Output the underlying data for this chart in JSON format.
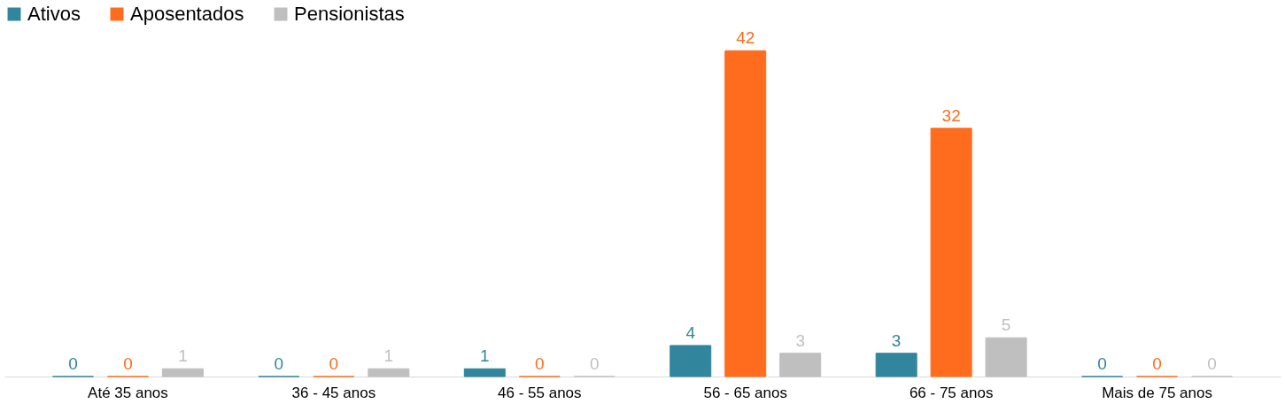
{
  "chart_data": {
    "type": "bar",
    "categories": [
      "Até 35 anos",
      "36 - 45 anos",
      "46 - 55 anos",
      "56 - 65 anos",
      "66 - 75 anos",
      "Mais de 75 anos"
    ],
    "series": [
      {
        "name": "Ativos",
        "color": "#31859c",
        "values": [
          0,
          0,
          1,
          4,
          3,
          0
        ]
      },
      {
        "name": "Aposentados",
        "color": "#ff6c1e",
        "values": [
          0,
          0,
          0,
          42,
          32,
          0
        ]
      },
      {
        "name": "Pensionistas",
        "color": "#bfbfbf",
        "values": [
          1,
          1,
          0,
          3,
          5,
          0
        ]
      }
    ],
    "data_labels": true,
    "legend": "top left",
    "grid": false
  }
}
